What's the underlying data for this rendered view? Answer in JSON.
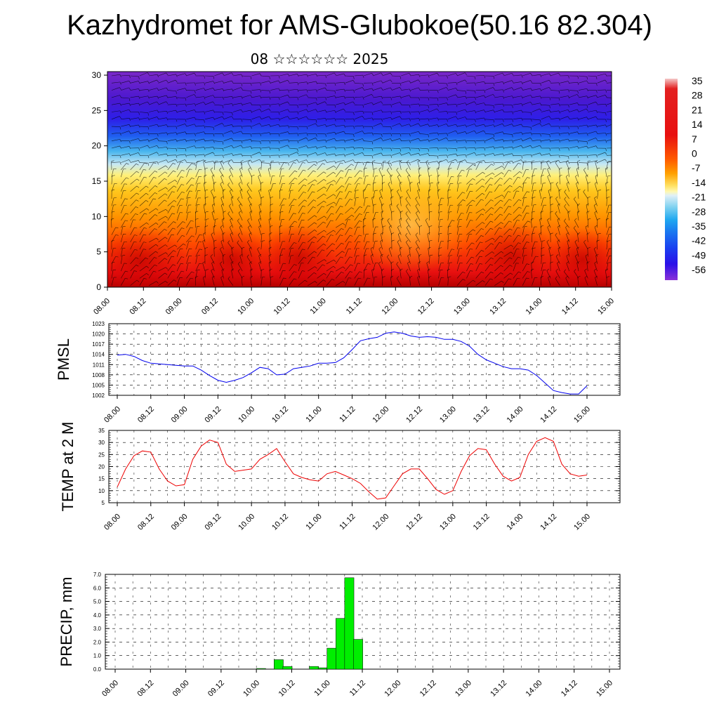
{
  "title": "Kazhydromet for AMS-Glubokoe(50.16 82.304)",
  "subtitle": "08 ☆☆☆☆☆☆ 2025",
  "colors": {
    "pmsl_line": "#0000ee",
    "temp_line": "#ee0000",
    "precip_bar": "#00ee00",
    "wind_barb": "#000000"
  },
  "chart_data": [
    {
      "type": "heatmap",
      "name_hint": "cross-section temperature with wind barbs",
      "title": "",
      "xlabel": "",
      "ylabel": "",
      "x_tick_labels": [
        "08.00",
        "08.12",
        "09.00",
        "09.12",
        "10.00",
        "10.12",
        "11.00",
        "11.12",
        "12.00",
        "12.12",
        "13.00",
        "13.12",
        "14.00",
        "14.12",
        "15.00"
      ],
      "y_ticks": [
        0,
        5,
        10,
        15,
        20,
        25,
        30
      ],
      "ylim": [
        0,
        30.5
      ],
      "colorbar_labels": [
        "35",
        "28",
        "21",
        "14",
        "7",
        "0",
        "-7",
        "-14",
        "-21",
        "-28",
        "-35",
        "-42",
        "-49",
        "-56"
      ],
      "colorbar_range": [
        -60,
        38
      ],
      "approx_temperature_profile": {
        "levels": [
          0,
          3,
          6,
          10,
          14,
          17,
          20,
          23,
          25,
          28,
          30.5
        ],
        "values": [
          31,
          25,
          16,
          4,
          -8,
          -18,
          -32,
          -48,
          -56,
          -54,
          -52
        ]
      },
      "wind_barbs": true
    },
    {
      "type": "line",
      "ylabel": "PMSL",
      "x_tick_labels": [
        "08.00",
        "08.12",
        "09.00",
        "09.12",
        "10.00",
        "10.12",
        "11.00",
        "11.12",
        "12.00",
        "12.12",
        "13.00",
        "13.12",
        "14.00",
        "14.12",
        "15.00"
      ],
      "y_tick_labels": [
        "1002",
        "1005",
        "1008",
        "1011",
        "1014",
        "1017",
        "1020",
        "1023"
      ],
      "ylim": [
        1002,
        1023
      ],
      "x": [
        0,
        3,
        6,
        9,
        12,
        15,
        18,
        21,
        24,
        27,
        30,
        33,
        36,
        39,
        42,
        45,
        48,
        51,
        54,
        57,
        60,
        63,
        66,
        69,
        72,
        75,
        78,
        81,
        84,
        87,
        90,
        93,
        96,
        99,
        102,
        105,
        108,
        111,
        114,
        117,
        120,
        123,
        126,
        129,
        132,
        135,
        138,
        141,
        144,
        147,
        150,
        153,
        156,
        159,
        162,
        165,
        168
      ],
      "values": [
        1013.8,
        1014.0,
        1013.4,
        1012.2,
        1011.4,
        1011.2,
        1011.0,
        1010.8,
        1010.6,
        1010.6,
        1009.4,
        1007.8,
        1006.4,
        1005.8,
        1006.4,
        1007.2,
        1008.6,
        1010.2,
        1009.8,
        1008.0,
        1008.2,
        1009.8,
        1010.2,
        1010.6,
        1011.4,
        1011.4,
        1011.6,
        1013.0,
        1015.4,
        1018.0,
        1018.6,
        1019.0,
        1020.2,
        1020.6,
        1020.2,
        1019.4,
        1019.0,
        1019.2,
        1019.0,
        1018.4,
        1018.4,
        1017.8,
        1016.4,
        1014.0,
        1012.4,
        1011.4,
        1010.4,
        1009.8,
        1009.8,
        1009.4,
        1007.8,
        1005.6,
        1003.4,
        1002.8,
        1002.4,
        1002.4,
        1004.8
      ]
    },
    {
      "type": "line",
      "ylabel": "TEMP at 2 M",
      "x_tick_labels": [
        "08.00",
        "08.12",
        "09.00",
        "09.12",
        "10.00",
        "10.12",
        "11.00",
        "11.12",
        "12.00",
        "12.12",
        "13.00",
        "13.12",
        "14.00",
        "14.12",
        "15.00"
      ],
      "y_tick_labels": [
        "5",
        "10",
        "15",
        "20",
        "25",
        "30",
        "35"
      ],
      "ylim": [
        5,
        35
      ],
      "x": [
        0,
        3,
        6,
        9,
        12,
        15,
        18,
        21,
        24,
        27,
        30,
        33,
        36,
        39,
        42,
        45,
        48,
        51,
        54,
        57,
        60,
        63,
        66,
        69,
        72,
        75,
        78,
        81,
        84,
        87,
        90,
        93,
        96,
        99,
        102,
        105,
        108,
        111,
        114,
        117,
        120,
        123,
        126,
        129,
        132,
        135,
        138,
        141,
        144,
        147,
        150,
        153,
        156,
        159,
        162,
        165,
        168
      ],
      "values": [
        11.5,
        19.0,
        24.5,
        26.5,
        26.0,
        19.0,
        14.0,
        12.0,
        12.5,
        23.0,
        28.5,
        31.0,
        30.0,
        21.0,
        18.0,
        18.5,
        19.0,
        23.0,
        25.0,
        27.5,
        22.0,
        17.0,
        15.5,
        14.5,
        14.0,
        17.0,
        18.0,
        16.5,
        15.0,
        13.0,
        9.5,
        6.5,
        7.0,
        12.0,
        17.0,
        19.0,
        19.0,
        15.0,
        10.5,
        8.5,
        10.0,
        18.0,
        24.5,
        27.5,
        27.0,
        21.0,
        16.0,
        14.0,
        15.5,
        25.0,
        30.5,
        32.0,
        30.5,
        21.0,
        17.0,
        16.0,
        16.5
      ]
    },
    {
      "type": "bar",
      "ylabel": "PRECIP, mm",
      "x_tick_labels": [
        "08.00",
        "08.12",
        "09.00",
        "09.12",
        "10.00",
        "10.12",
        "11.00",
        "11.12",
        "12.00",
        "12.12",
        "13.00",
        "13.12",
        "14.00",
        "14.12",
        "15.00"
      ],
      "y_tick_labels": [
        "0.0",
        "1.0",
        "2.0",
        "3.0",
        "4.0",
        "5.0",
        "6.0",
        "7.0"
      ],
      "ylim": [
        0,
        7
      ],
      "bins": [
        {
          "x": 48,
          "value": 0.05
        },
        {
          "x": 54,
          "value": 0.7
        },
        {
          "x": 57,
          "value": 0.2
        },
        {
          "x": 66,
          "value": 0.2
        },
        {
          "x": 69,
          "value": 0.1
        },
        {
          "x": 72,
          "value": 1.55
        },
        {
          "x": 75,
          "value": 3.75
        },
        {
          "x": 78,
          "value": 6.75
        },
        {
          "x": 81,
          "value": 2.2
        }
      ]
    }
  ]
}
